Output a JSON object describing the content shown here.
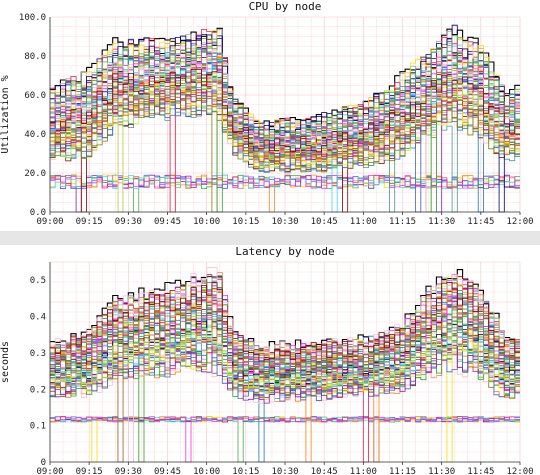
{
  "chart_data": [
    {
      "type": "line",
      "title": "CPU by node",
      "xlabel": "",
      "ylabel": "Utilization %",
      "xlim": [
        "09:00",
        "12:00"
      ],
      "ylim": [
        0,
        100
      ],
      "x_ticks": [
        "09:00",
        "09:15",
        "09:30",
        "09:45",
        "10:00",
        "10:15",
        "10:30",
        "10:45",
        "11:00",
        "11:15",
        "11:30",
        "11:45",
        "12:00"
      ],
      "y_ticks": [
        "0.0",
        "20.0",
        "40.0",
        "60.0",
        "80.0",
        "100.0"
      ],
      "y_tick_values": [
        0,
        20,
        40,
        60,
        80,
        100
      ],
      "grid": true,
      "series_count": 70,
      "step": true,
      "envelope": {
        "x": [
          "09:00",
          "09:15",
          "09:25",
          "09:45",
          "10:00",
          "10:05",
          "10:10",
          "10:20",
          "10:45",
          "11:00",
          "11:15",
          "11:25",
          "11:35",
          "11:45",
          "11:55",
          "12:00"
        ],
        "median": [
          38,
          43,
          58,
          60,
          66,
          62,
          45,
          28,
          31,
          33,
          40,
          52,
          62,
          55,
          38,
          40
        ],
        "max": [
          64,
          72,
          87,
          88,
          93,
          92,
          60,
          45,
          50,
          55,
          70,
          82,
          94,
          85,
          60,
          66
        ],
        "min": [
          28,
          30,
          45,
          50,
          52,
          50,
          32,
          22,
          22,
          25,
          30,
          40,
          46,
          40,
          28,
          30
        ]
      },
      "low_band": {
        "value": 14,
        "range": [
          12,
          19
        ]
      },
      "colors": [
        "#000000",
        "#e6194b",
        "#3cb44b",
        "#ffd700",
        "#4363d8",
        "#f58231",
        "#911eb4",
        "#42d4f4",
        "#f032e6",
        "#bfef45",
        "#fabed4",
        "#469990",
        "#9a6324",
        "#800000",
        "#808000",
        "#000075",
        "#a9a9a9",
        "#ff7f0e",
        "#2ca02c",
        "#1f77b4"
      ]
    },
    {
      "type": "line",
      "title": "Latency by node",
      "xlabel": "",
      "ylabel": "seconds",
      "xlim": [
        "09:00",
        "12:00"
      ],
      "ylim": [
        0,
        0.55
      ],
      "x_ticks": [
        "09:00",
        "09:15",
        "09:30",
        "09:45",
        "10:00",
        "10:15",
        "10:30",
        "10:45",
        "11:00",
        "11:15",
        "11:30",
        "11:45",
        "12:00"
      ],
      "y_ticks": [
        "0",
        "0.1",
        "0.2",
        "0.3",
        "0.4",
        "0.5"
      ],
      "y_tick_values": [
        0,
        0.1,
        0.2,
        0.3,
        0.4,
        0.5
      ],
      "grid": true,
      "series_count": 70,
      "step": true,
      "envelope": {
        "x": [
          "09:00",
          "09:15",
          "09:25",
          "09:45",
          "10:00",
          "10:05",
          "10:10",
          "10:20",
          "10:45",
          "11:00",
          "11:15",
          "11:25",
          "11:35",
          "11:45",
          "11:55",
          "12:00"
        ],
        "median": [
          0.24,
          0.26,
          0.31,
          0.32,
          0.35,
          0.34,
          0.26,
          0.22,
          0.25,
          0.26,
          0.28,
          0.33,
          0.37,
          0.32,
          0.24,
          0.25
        ],
        "max": [
          0.33,
          0.36,
          0.45,
          0.48,
          0.52,
          0.53,
          0.36,
          0.32,
          0.33,
          0.34,
          0.38,
          0.47,
          0.53,
          0.47,
          0.35,
          0.35
        ],
        "min": [
          0.18,
          0.19,
          0.23,
          0.24,
          0.26,
          0.25,
          0.19,
          0.17,
          0.18,
          0.19,
          0.2,
          0.24,
          0.27,
          0.23,
          0.18,
          0.19
        ]
      },
      "low_band": {
        "value": 0.12,
        "range": [
          0.11,
          0.125
        ]
      },
      "colors": [
        "#000000",
        "#e6194b",
        "#3cb44b",
        "#ffd700",
        "#4363d8",
        "#f58231",
        "#911eb4",
        "#42d4f4",
        "#f032e6",
        "#bfef45",
        "#fabed4",
        "#469990",
        "#9a6324",
        "#800000",
        "#808000",
        "#000075",
        "#a9a9a9",
        "#ff7f0e",
        "#2ca02c",
        "#1f77b4"
      ]
    }
  ]
}
